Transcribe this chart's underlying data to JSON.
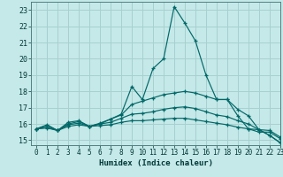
{
  "title": "",
  "xlabel": "Humidex (Indice chaleur)",
  "xlim": [
    -0.5,
    23
  ],
  "ylim": [
    14.7,
    23.5
  ],
  "yticks": [
    15,
    16,
    17,
    18,
    19,
    20,
    21,
    22,
    23
  ],
  "xticks": [
    0,
    1,
    2,
    3,
    4,
    5,
    6,
    7,
    8,
    9,
    10,
    11,
    12,
    13,
    14,
    15,
    16,
    17,
    18,
    19,
    20,
    21,
    22,
    23
  ],
  "bg_color": "#c5e8e8",
  "grid_color": "#a8d0d0",
  "line_color": "#006868",
  "lines": [
    {
      "x": [
        0,
        1,
        2,
        3,
        4,
        5,
        6,
        7,
        8,
        9,
        10,
        11,
        12,
        13,
        14,
        15,
        16,
        17,
        18,
        19,
        20,
        21,
        22,
        23
      ],
      "y": [
        15.7,
        15.95,
        15.6,
        16.1,
        16.2,
        15.85,
        16.0,
        16.3,
        16.6,
        18.3,
        17.5,
        19.4,
        20.0,
        23.2,
        22.2,
        21.1,
        19.0,
        17.5,
        17.5,
        16.5,
        15.7,
        15.65,
        15.3,
        14.85
      ]
    },
    {
      "x": [
        0,
        1,
        2,
        3,
        4,
        5,
        6,
        7,
        8,
        9,
        10,
        11,
        12,
        13,
        14,
        15,
        16,
        17,
        18,
        19,
        20,
        21,
        22,
        23
      ],
      "y": [
        15.7,
        15.9,
        15.6,
        16.0,
        16.15,
        15.85,
        16.05,
        16.3,
        16.55,
        17.2,
        17.4,
        17.6,
        17.8,
        17.9,
        18.0,
        17.9,
        17.7,
        17.5,
        17.5,
        16.9,
        16.5,
        15.65,
        15.3,
        14.85
      ]
    },
    {
      "x": [
        0,
        1,
        2,
        3,
        4,
        5,
        6,
        7,
        8,
        9,
        10,
        11,
        12,
        13,
        14,
        15,
        16,
        17,
        18,
        19,
        20,
        21,
        22,
        23
      ],
      "y": [
        15.7,
        15.8,
        15.6,
        15.95,
        16.05,
        15.85,
        16.0,
        16.1,
        16.35,
        16.6,
        16.65,
        16.75,
        16.9,
        17.0,
        17.05,
        16.95,
        16.75,
        16.55,
        16.45,
        16.2,
        16.0,
        15.65,
        15.6,
        15.2
      ]
    },
    {
      "x": [
        0,
        1,
        2,
        3,
        4,
        5,
        6,
        7,
        8,
        9,
        10,
        11,
        12,
        13,
        14,
        15,
        16,
        17,
        18,
        19,
        20,
        21,
        22,
        23
      ],
      "y": [
        15.7,
        15.75,
        15.6,
        15.85,
        15.95,
        15.85,
        15.9,
        15.95,
        16.1,
        16.2,
        16.2,
        16.25,
        16.3,
        16.35,
        16.35,
        16.25,
        16.15,
        16.05,
        15.95,
        15.8,
        15.7,
        15.5,
        15.5,
        15.1
      ]
    }
  ]
}
